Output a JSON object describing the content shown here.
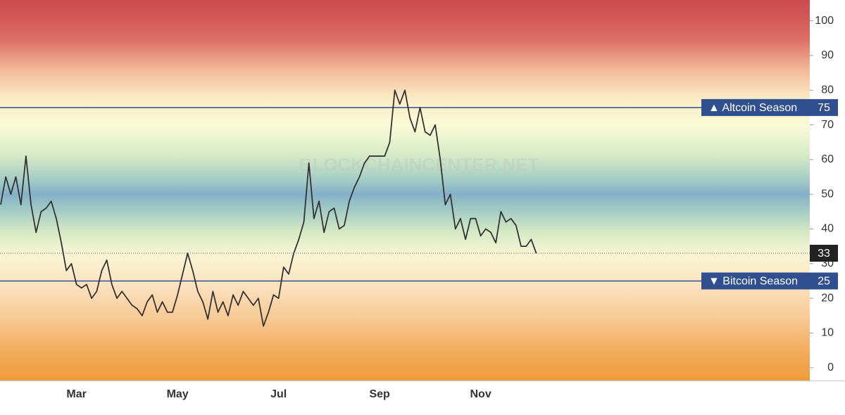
{
  "chart_data": {
    "type": "line",
    "watermark": "BLOCKCHAINCENTER.NET",
    "categories": [
      null,
      null,
      null,
      null,
      null,
      null,
      null,
      null,
      null,
      null,
      null,
      null,
      null,
      null,
      null,
      "Mar",
      null,
      null,
      null,
      null,
      null,
      null,
      null,
      null,
      null,
      null,
      null,
      null,
      null,
      null,
      null,
      null,
      null,
      null,
      null,
      "May",
      null,
      null,
      null,
      null,
      null,
      null,
      null,
      null,
      null,
      null,
      null,
      null,
      null,
      null,
      null,
      null,
      null,
      null,
      null,
      "Jul",
      null,
      null,
      null,
      null,
      null,
      null,
      null,
      null,
      null,
      null,
      null,
      null,
      null,
      null,
      null,
      null,
      null,
      null,
      null,
      "Sep",
      null,
      null,
      null,
      null,
      null,
      null,
      null,
      null,
      null,
      null,
      null,
      null,
      null,
      null,
      null,
      null,
      null,
      null,
      null,
      "Nov",
      null,
      null,
      null,
      null,
      null,
      null,
      null,
      null,
      null,
      null,
      null
    ],
    "series": [
      {
        "color": "#333333",
        "values": [
          47,
          55,
          50,
          55,
          47,
          61,
          47,
          39,
          45,
          46,
          48,
          43,
          36,
          28,
          30,
          24,
          23,
          24,
          20,
          22,
          28,
          31,
          24,
          20,
          22,
          20,
          18,
          17,
          15,
          19,
          21,
          16,
          19,
          16,
          16,
          21,
          27,
          33,
          28,
          22,
          19,
          14,
          22,
          16,
          19,
          15,
          21,
          18,
          22,
          20,
          18,
          20,
          12,
          16,
          21,
          20,
          29,
          27,
          33,
          37,
          42,
          59,
          43,
          48,
          39,
          45,
          46,
          40,
          41,
          48,
          52,
          55,
          59,
          61,
          61,
          61,
          61,
          65,
          80,
          76,
          80,
          72,
          68,
          75,
          68,
          67,
          70,
          60,
          47,
          50,
          40,
          43,
          37,
          43,
          43,
          38,
          40,
          39,
          36,
          45,
          42,
          43,
          41,
          35,
          35,
          37,
          33
        ]
      }
    ],
    "ylim": [
      -3.7,
      106
    ],
    "yticks": [
      0,
      10,
      20,
      30,
      40,
      50,
      60,
      70,
      80,
      90,
      100
    ],
    "reference_lines": [
      {
        "label": "▲ Altcoin Season",
        "value": 75,
        "color": "#2f4f8f"
      },
      {
        "label": "▼ Bitcoin Season",
        "value": 25,
        "color": "#2f4f8f"
      }
    ]
  }
}
